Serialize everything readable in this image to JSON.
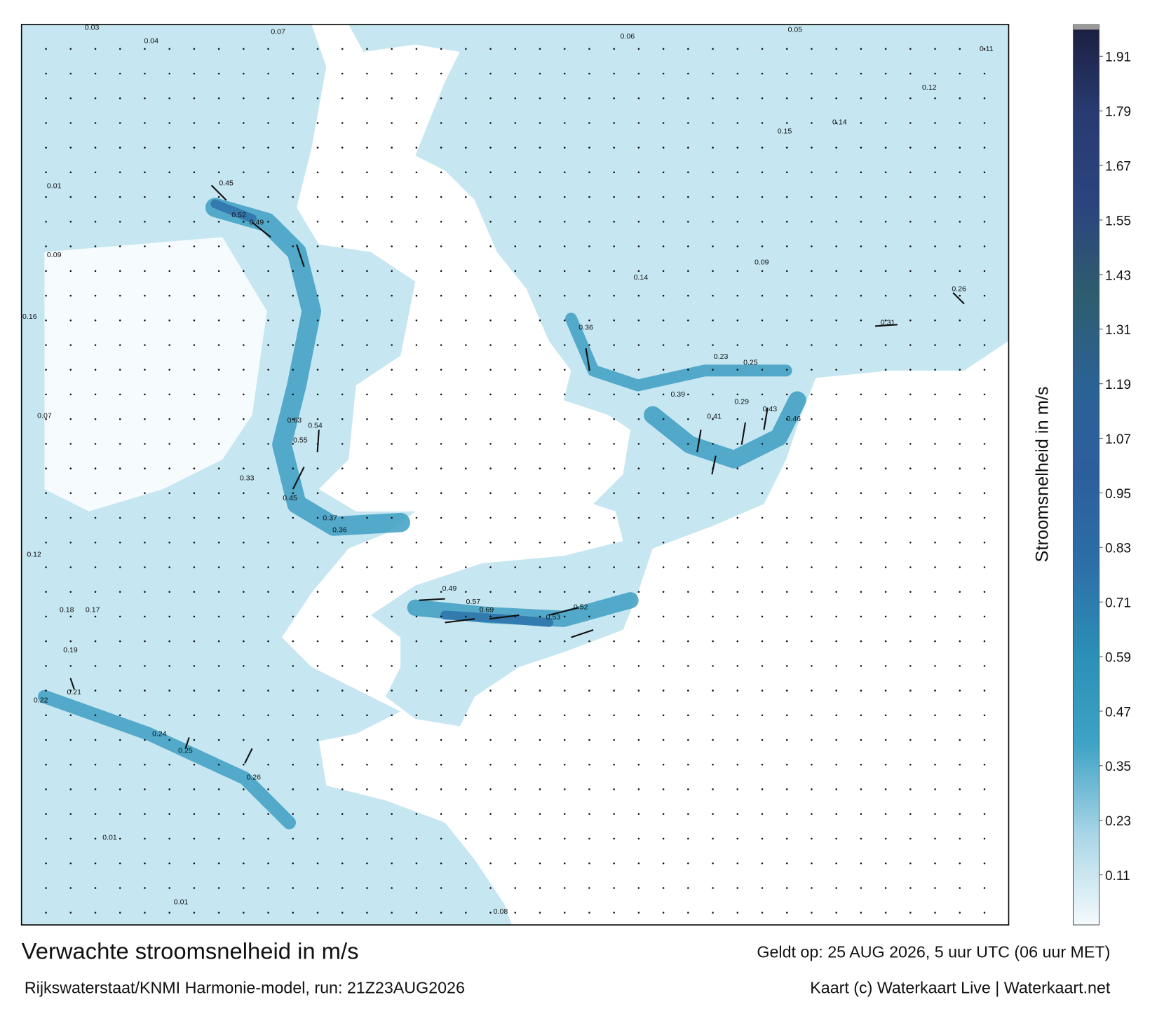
{
  "title": "Verwachte stroomsnelheid in m/s",
  "subtitle": "Rijkswaterstaat/KNMI Harmonie-model, run: 21Z23AUG2026",
  "valid_time": "Geldt op: 25 AUG 2026, 5 uur UTC (06 uur MET)",
  "credit": "Kaart (c) Waterkaart Live | Waterkaart.net",
  "colorbar": {
    "label": "Stroomsnelheid in m/s",
    "range": [
      0,
      1.98
    ],
    "ticks": [
      0.11,
      0.23,
      0.35,
      0.47,
      0.59,
      0.71,
      0.83,
      0.95,
      1.07,
      1.19,
      1.31,
      1.43,
      1.55,
      1.67,
      1.79,
      1.91
    ],
    "colors": [
      "#f4fafc",
      "#a9d6e7",
      "#3fa3c6",
      "#2b8fb6",
      "#2c6fa8",
      "#2c5e9e",
      "#2b6295",
      "#2e5d6e",
      "#2b447f",
      "#283b72",
      "#1b1f3f"
    ]
  },
  "map": {
    "labels": [
      0.45,
      0.52,
      0.49,
      0.36,
      0.53,
      0.52,
      0.69,
      0.57,
      0.49,
      0.41,
      0.43,
      0.46,
      0.39,
      0.29,
      0.23,
      0.25,
      0.31,
      0.26,
      0.55,
      0.63,
      0.54,
      0.33,
      0.45,
      0.37,
      0.36,
      0.21,
      0.19,
      0.18,
      0.17,
      0.22,
      0.26,
      0.25,
      0.24,
      0.03,
      0.04,
      0.07,
      0.05,
      0.06,
      0.11,
      0.12,
      0.15,
      0.14,
      0.01,
      0.09,
      0.16,
      0.07,
      0.12,
      0.01,
      0.01,
      0.08,
      0.09,
      0.14
    ]
  }
}
